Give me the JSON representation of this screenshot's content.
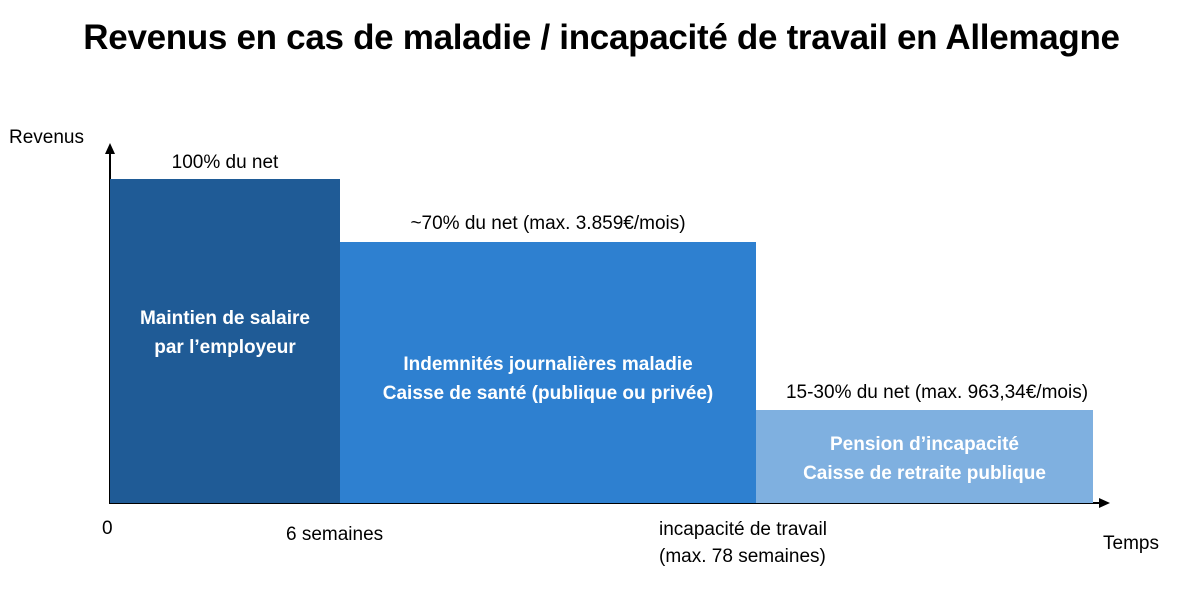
{
  "title": "Revenus en cas de maladie / incapacité de travail en Allemagne",
  "axes": {
    "y_label": "Revenus",
    "x_label": "Temps",
    "origin_label": "0"
  },
  "blocks": [
    {
      "top_label": "100% du net",
      "lines": [
        "Maintien de salaire",
        "par l’employeur"
      ],
      "color": "#1f5b96"
    },
    {
      "top_label": "~70% du net (max. 3.859€/mois)",
      "lines": [
        "Indemnités journalières maladie",
        "Caisse de santé (publique ou privée)"
      ],
      "color": "#2e80d0"
    },
    {
      "top_label": "15-30% du net (max. 963,34€/mois)",
      "lines": [
        "Pension d’incapacité",
        "Caisse de retraite publique"
      ],
      "color": "#7fb0e0"
    }
  ],
  "time_markers": [
    {
      "lines": [
        "6 semaines"
      ]
    },
    {
      "lines": [
        "incapacité de travail",
        "(max. 78 semaines)"
      ]
    }
  ]
}
